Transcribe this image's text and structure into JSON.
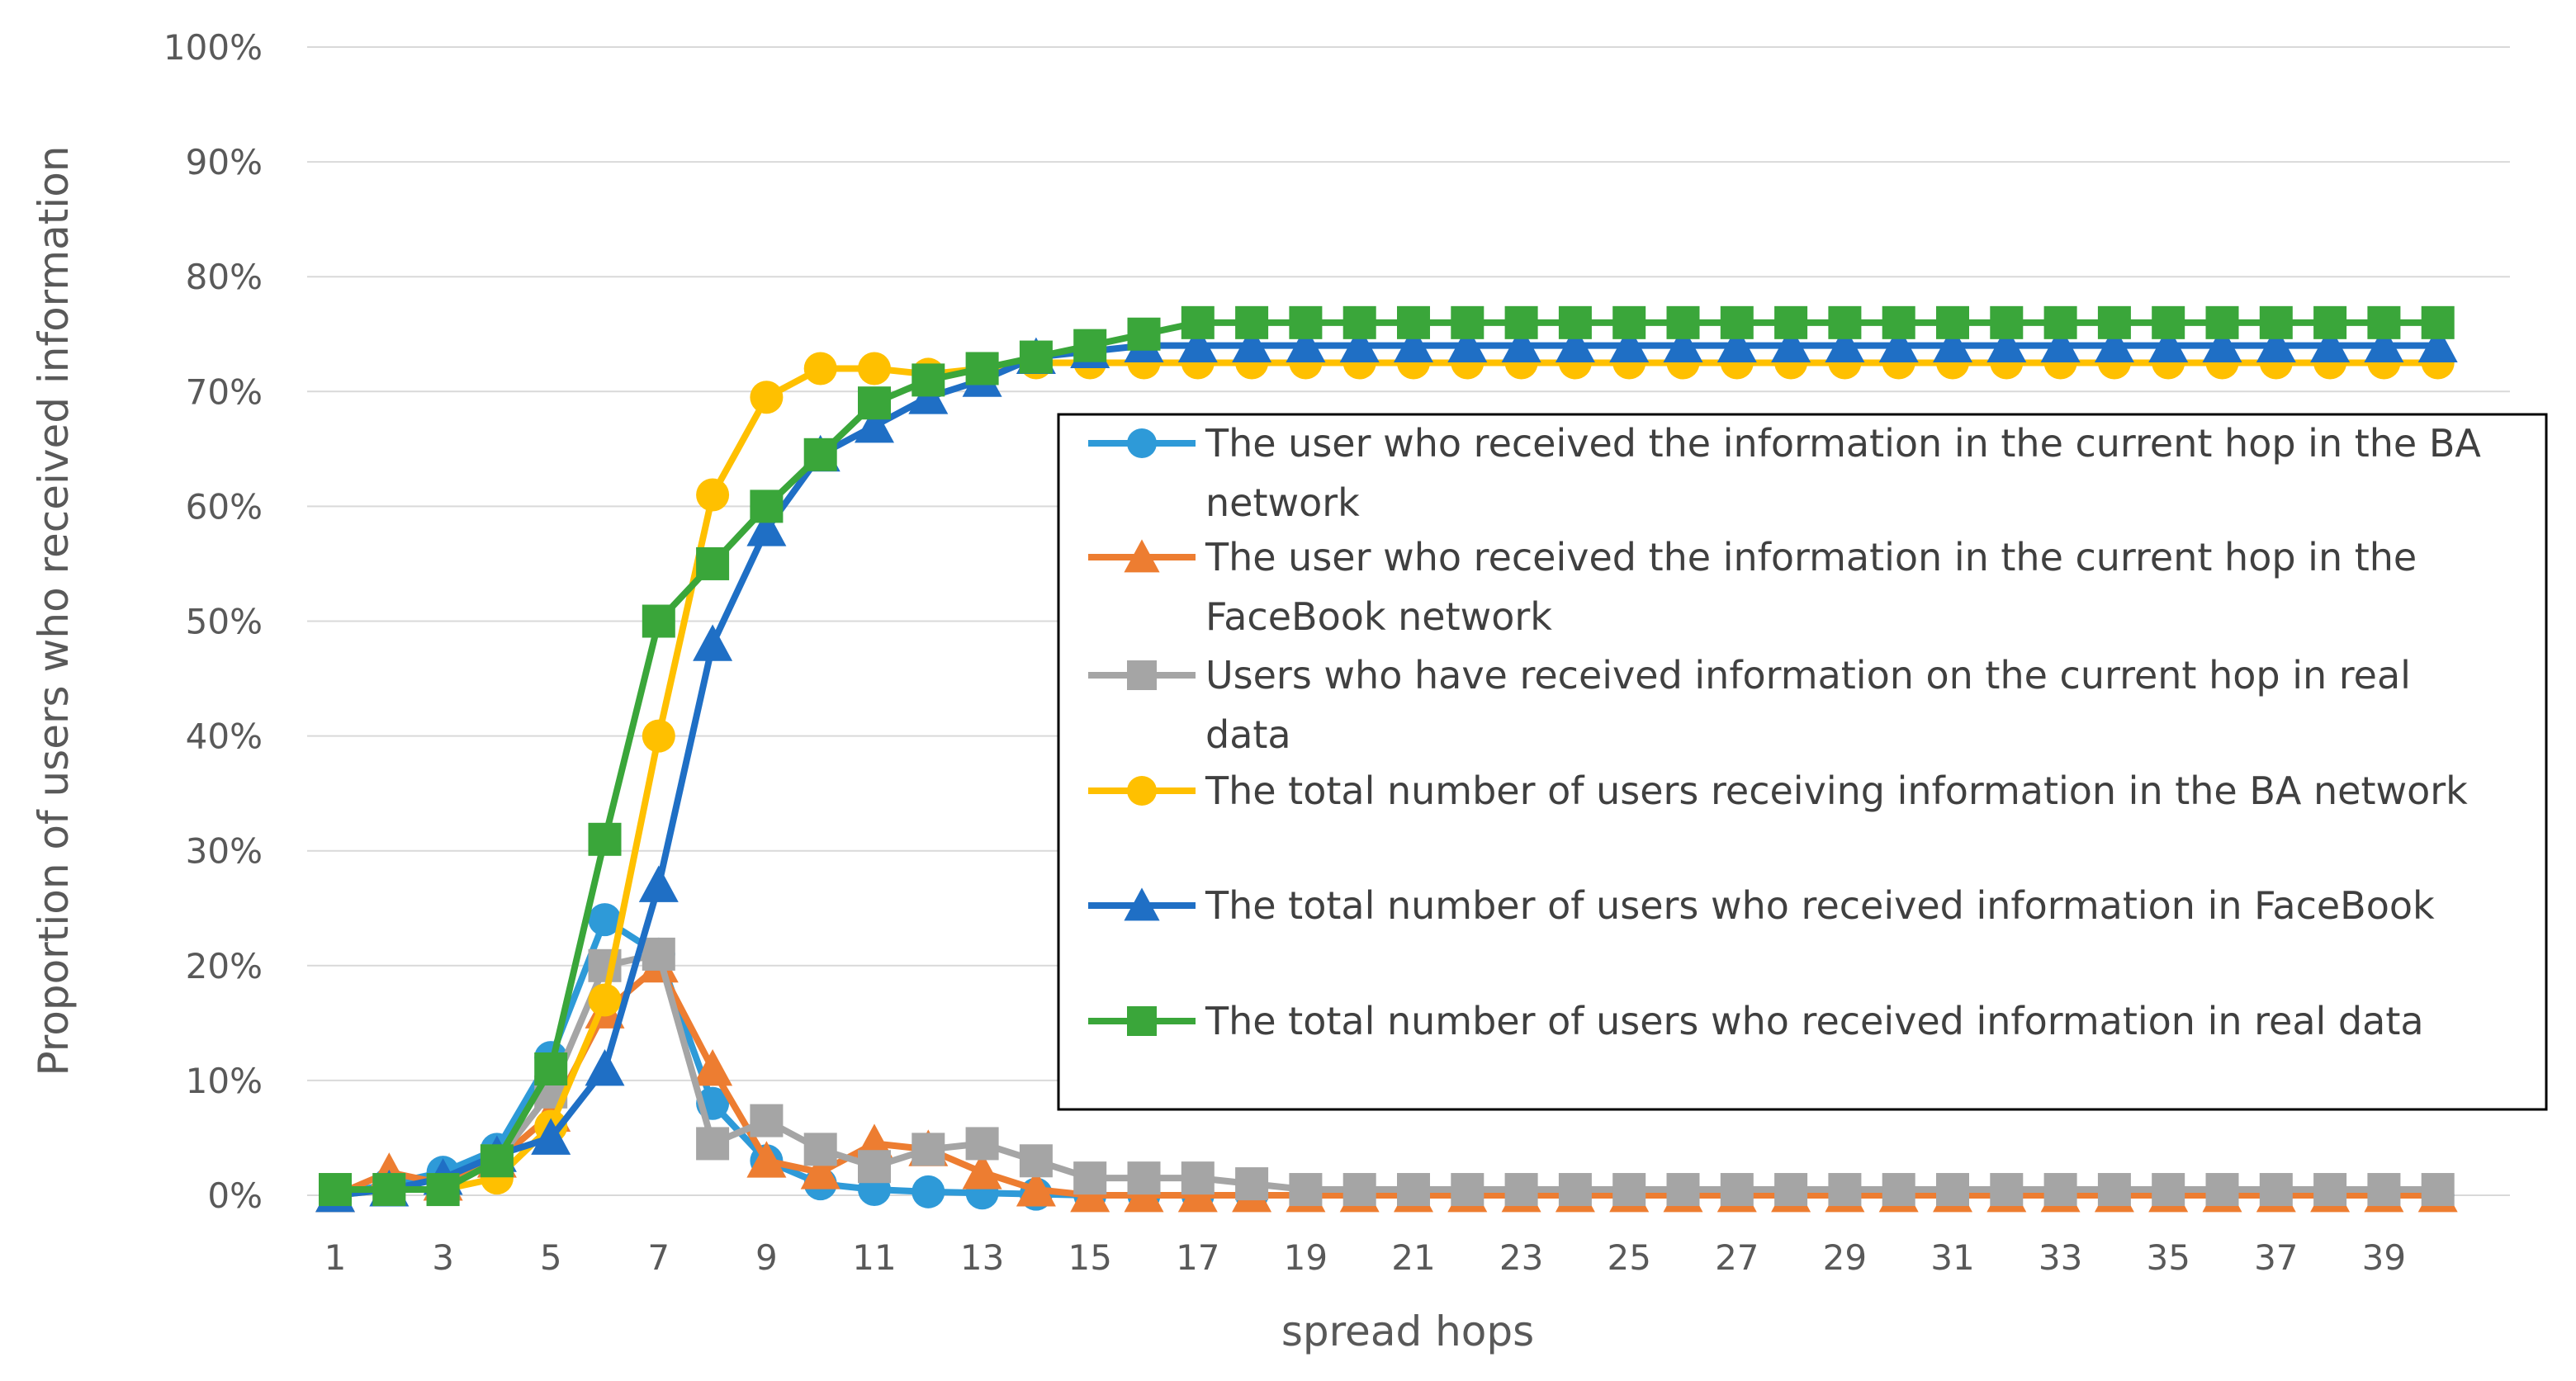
{
  "chart_data": {
    "type": "line",
    "title": "",
    "xlabel": "spread hops",
    "ylabel": "Proportion of users who received information",
    "ylim": [
      0,
      100
    ],
    "y_ticks": [
      "0%",
      "10%",
      "20%",
      "30%",
      "40%",
      "50%",
      "60%",
      "70%",
      "80%",
      "90%",
      "100%"
    ],
    "x_ticks": [
      "1",
      "3",
      "5",
      "7",
      "9",
      "11",
      "13",
      "15",
      "17",
      "19",
      "21",
      "23",
      "25",
      "27",
      "29",
      "31",
      "33",
      "35",
      "37",
      "39"
    ],
    "x": [
      1,
      2,
      3,
      4,
      5,
      6,
      7,
      8,
      9,
      10,
      11,
      12,
      13,
      14,
      15,
      16,
      17,
      18,
      19,
      20,
      21,
      22,
      23,
      24,
      25,
      26,
      27,
      28,
      29,
      30,
      31,
      32,
      33,
      34,
      35,
      36,
      37,
      38,
      39,
      40
    ],
    "grid": "horizontal",
    "legend_position": "right",
    "series": [
      {
        "name_lines": [
          "The user who received the information in the current hop in the BA",
          "network"
        ],
        "color": "#2e9ad8",
        "marker": "circle",
        "values": [
          0,
          1,
          2,
          4,
          12,
          24,
          21,
          8,
          3,
          1,
          0.5,
          0.3,
          0.2,
          0.1,
          0,
          0,
          0,
          0,
          0,
          0,
          0,
          0,
          0,
          0,
          0,
          0,
          0,
          0,
          0,
          0,
          0,
          0,
          0,
          0,
          0,
          0,
          0,
          0,
          0,
          0
        ]
      },
      {
        "name_lines": [
          "The user who received the information in the current hop in the",
          "FaceBook network"
        ],
        "color": "#ed7d31",
        "marker": "triangle",
        "values": [
          0,
          2,
          1,
          3,
          7,
          16,
          20,
          11,
          3,
          2,
          4.5,
          4,
          2,
          0.5,
          0,
          0,
          0,
          0,
          0,
          0,
          0,
          0,
          0,
          0,
          0,
          0,
          0,
          0,
          0,
          0,
          0,
          0,
          0,
          0,
          0,
          0,
          0,
          0,
          0,
          0
        ]
      },
      {
        "name_lines": [
          "Users who have received information on the current hop in real",
          "data"
        ],
        "color": "#a5a5a5",
        "marker": "square",
        "values": [
          0.5,
          0.5,
          0.5,
          3,
          9,
          20,
          21,
          4.5,
          6.5,
          4,
          2.5,
          4,
          4.5,
          3,
          1.5,
          1.5,
          1.5,
          1,
          0.5,
          0.5,
          0.5,
          0.5,
          0.5,
          0.5,
          0.5,
          0.5,
          0.5,
          0.5,
          0.5,
          0.5,
          0.5,
          0.5,
          0.5,
          0.5,
          0.5,
          0.5,
          0.5,
          0.5,
          0.5,
          0.5
        ]
      },
      {
        "name_lines": [
          "The total number of users receiving information in the BA network"
        ],
        "color": "#ffc000",
        "marker": "circle",
        "values": [
          0,
          0.5,
          0.5,
          1.5,
          6,
          17,
          40,
          61,
          69.5,
          72,
          72,
          71.5,
          72,
          72.5,
          72.5,
          72.5,
          72.5,
          72.5,
          72.5,
          72.5,
          72.5,
          72.5,
          72.5,
          72.5,
          72.5,
          72.5,
          72.5,
          72.5,
          72.5,
          72.5,
          72.5,
          72.5,
          72.5,
          72.5,
          72.5,
          72.5,
          72.5,
          72.5,
          72.5,
          72.5
        ]
      },
      {
        "name_lines": [
          "The total number of users who received information in FaceBook"
        ],
        "color": "#1f6fc5",
        "marker": "triangle",
        "values": [
          0,
          0.5,
          1.5,
          3.5,
          5,
          11,
          27,
          48,
          58,
          64.5,
          67,
          69.5,
          71,
          73,
          73.5,
          74,
          74,
          74,
          74,
          74,
          74,
          74,
          74,
          74,
          74,
          74,
          74,
          74,
          74,
          74,
          74,
          74,
          74,
          74,
          74,
          74,
          74,
          74,
          74,
          74
        ]
      },
      {
        "name_lines": [
          "The total number of users who received information  in real data"
        ],
        "color": "#3aa63a",
        "marker": "square",
        "values": [
          0.5,
          0.5,
          0.5,
          3,
          11,
          31,
          50,
          55,
          60,
          64.5,
          69,
          71,
          72,
          73,
          74,
          75,
          76,
          76,
          76,
          76,
          76,
          76,
          76,
          76,
          76,
          76,
          76,
          76,
          76,
          76,
          76,
          76,
          76,
          76,
          76,
          76,
          76,
          76,
          76,
          76
        ]
      }
    ]
  }
}
